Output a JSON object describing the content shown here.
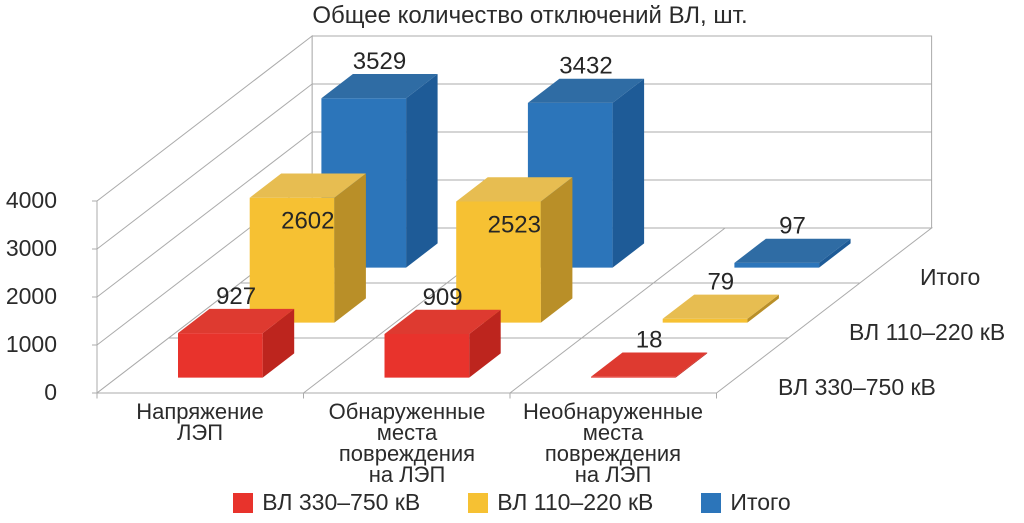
{
  "chart_data": {
    "type": "bar",
    "projection": "3d",
    "title": "Общее количество отключений ВЛ, шт.",
    "categories": [
      "Напряжение ЛЭП",
      "Обнаруженные места повреждения на ЛЭП",
      "Необнаруженные места повреждения на ЛЭП"
    ],
    "category_label_lines": [
      [
        "Напряжение",
        "ЛЭП"
      ],
      [
        "Обнаруженные",
        "места",
        "повреждения",
        "на ЛЭП"
      ],
      [
        "Необнаруженные",
        "места",
        "повреждения",
        "на ЛЭП"
      ]
    ],
    "series": [
      {
        "name": "ВЛ 330–750 кВ",
        "values": [
          927,
          909,
          18
        ],
        "color": "#E8332C",
        "color_top": "#DE3A30",
        "color_side": "#BD251E"
      },
      {
        "name": "ВЛ 110–220 кВ",
        "values": [
          2602,
          2523,
          79
        ],
        "color": "#F6C133",
        "color_top": "#E7BD51",
        "color_side": "#B98F28"
      },
      {
        "name": "Итого",
        "values": [
          3529,
          3432,
          97
        ],
        "color": "#2C75BA",
        "color_top": "#2F6CA4",
        "color_side": "#1E5B97"
      }
    ],
    "depth_axis_labels": [
      "ВЛ 330–750 кВ",
      "ВЛ 110–220 кВ",
      "Итого"
    ],
    "y_axis": {
      "min": 0,
      "max": 4000,
      "step": 1000,
      "ticks": [
        "0",
        "1000",
        "2000",
        "3000",
        "4000"
      ]
    },
    "grid": true,
    "grid_color": "#ABABAB",
    "label_color": "#262626",
    "legend_position": "bottom"
  }
}
